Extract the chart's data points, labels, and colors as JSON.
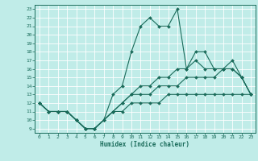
{
  "title": "",
  "xlabel": "Humidex (Indice chaleur)",
  "bg_color": "#c0ece8",
  "grid_color": "#ffffff",
  "line_color": "#1a6b5a",
  "xlim": [
    -0.5,
    23.5
  ],
  "ylim": [
    8.5,
    23.5
  ],
  "xticks": [
    0,
    1,
    2,
    3,
    4,
    5,
    6,
    7,
    8,
    9,
    10,
    11,
    12,
    13,
    14,
    15,
    16,
    17,
    18,
    19,
    20,
    21,
    22,
    23
  ],
  "yticks": [
    9,
    10,
    11,
    12,
    13,
    14,
    15,
    16,
    17,
    18,
    19,
    20,
    21,
    22,
    23
  ],
  "line1_x": [
    0,
    1,
    2,
    3,
    4,
    5,
    6,
    7,
    8,
    9,
    10,
    11,
    12,
    13,
    14,
    15,
    16,
    17,
    18,
    19,
    20,
    21,
    22,
    23
  ],
  "line1_y": [
    12,
    11,
    11,
    11,
    10,
    9,
    9,
    10,
    13,
    14,
    18,
    21,
    22,
    21,
    21,
    23,
    16,
    18,
    18,
    16,
    16,
    17,
    15,
    13
  ],
  "line2_x": [
    0,
    1,
    2,
    3,
    4,
    5,
    6,
    7,
    8,
    9,
    10,
    11,
    12,
    13,
    14,
    15,
    16,
    17,
    18,
    19,
    20,
    21,
    22,
    23
  ],
  "line2_y": [
    12,
    11,
    11,
    11,
    10,
    9,
    9,
    10,
    11,
    12,
    13,
    14,
    14,
    15,
    15,
    16,
    16,
    17,
    16,
    16,
    16,
    16,
    15,
    13
  ],
  "line3_x": [
    0,
    1,
    2,
    3,
    4,
    5,
    6,
    7,
    8,
    9,
    10,
    11,
    12,
    13,
    14,
    15,
    16,
    17,
    18,
    19,
    20,
    21,
    22,
    23
  ],
  "line3_y": [
    12,
    11,
    11,
    11,
    10,
    9,
    9,
    10,
    11,
    12,
    13,
    13,
    13,
    14,
    14,
    14,
    15,
    15,
    15,
    15,
    16,
    16,
    15,
    13
  ],
  "line4_x": [
    0,
    1,
    2,
    3,
    4,
    5,
    6,
    7,
    8,
    9,
    10,
    11,
    12,
    13,
    14,
    15,
    16,
    17,
    18,
    19,
    20,
    21,
    22,
    23
  ],
  "line4_y": [
    12,
    11,
    11,
    11,
    10,
    9,
    9,
    10,
    11,
    11,
    12,
    12,
    12,
    12,
    13,
    13,
    13,
    13,
    13,
    13,
    13,
    13,
    13,
    13
  ]
}
